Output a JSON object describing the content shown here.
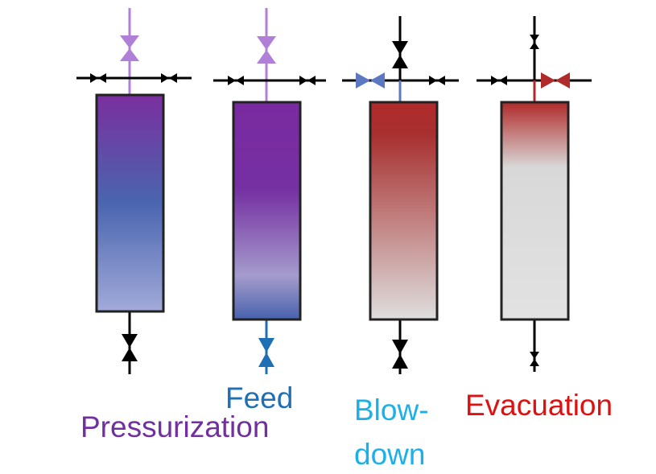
{
  "columns": [
    {
      "label": [
        "Pressurization"
      ]
    },
    {
      "label": [
        "Feed"
      ]
    },
    {
      "label": [
        "Blow-",
        "down"
      ]
    },
    {
      "label": [
        "Evacuation"
      ]
    }
  ]
}
